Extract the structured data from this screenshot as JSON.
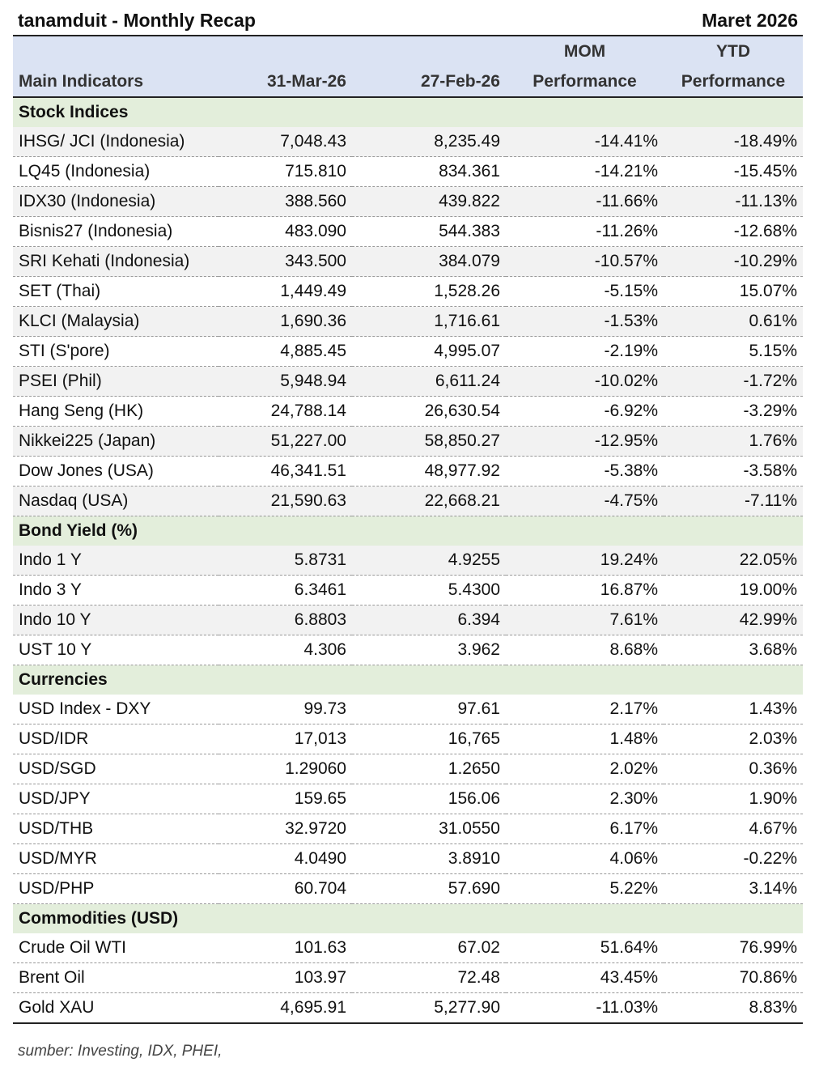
{
  "header": {
    "title": "tanamduit - Monthly Recap",
    "period": "Maret 2026"
  },
  "table": {
    "columns": [
      [
        "Main Indicators"
      ],
      [
        "31-Mar-26"
      ],
      [
        "27-Feb-26"
      ],
      [
        "MOM",
        "Performance"
      ],
      [
        "YTD",
        "Performance"
      ]
    ],
    "sections": [
      {
        "title": "Stock Indices",
        "rows": [
          [
            "IHSG/ JCI (Indonesia)",
            "7,048.43",
            "8,235.49",
            "-14.41%",
            "-18.49%"
          ],
          [
            "LQ45 (Indonesia)",
            "715.810",
            "834.361",
            "-14.21%",
            "-15.45%"
          ],
          [
            "IDX30 (Indonesia)",
            "388.560",
            "439.822",
            "-11.66%",
            "-11.13%"
          ],
          [
            "Bisnis27 (Indonesia)",
            "483.090",
            "544.383",
            "-11.26%",
            "-12.68%"
          ],
          [
            "SRI Kehati (Indonesia)",
            "343.500",
            "384.079",
            "-10.57%",
            "-10.29%"
          ],
          [
            "SET (Thai)",
            "1,449.49",
            "1,528.26",
            "-5.15%",
            "15.07%"
          ],
          [
            "KLCI (Malaysia)",
            "1,690.36",
            "1,716.61",
            "-1.53%",
            "0.61%"
          ],
          [
            "STI (S'pore)",
            "4,885.45",
            "4,995.07",
            "-2.19%",
            "5.15%"
          ],
          [
            "PSEI (Phil)",
            "5,948.94",
            "6,611.24",
            "-10.02%",
            "-1.72%"
          ],
          [
            "Hang Seng (HK)",
            "24,788.14",
            "26,630.54",
            "-6.92%",
            "-3.29%"
          ],
          [
            "Nikkei225 (Japan)",
            "51,227.00",
            "58,850.27",
            "-12.95%",
            "1.76%"
          ],
          [
            "Dow Jones (USA)",
            "46,341.51",
            "48,977.92",
            "-5.38%",
            "-3.58%"
          ],
          [
            "Nasdaq (USA)",
            "21,590.63",
            "22,668.21",
            "-4.75%",
            "-7.11%"
          ]
        ]
      },
      {
        "title": "Bond Yield (%)",
        "rows": [
          [
            "Indo 1 Y",
            "5.8731",
            "4.9255",
            "19.24%",
            "22.05%"
          ],
          [
            "Indo 3 Y",
            "6.3461",
            "5.4300",
            "16.87%",
            "19.00%"
          ],
          [
            "Indo 10 Y",
            "6.8803",
            "6.394",
            "7.61%",
            "42.99%"
          ],
          [
            "UST 10 Y",
            "4.306",
            "3.962",
            "8.68%",
            "3.68%"
          ]
        ]
      },
      {
        "title": "Currencies",
        "rows": [
          [
            "USD Index - DXY",
            "99.73",
            "97.61",
            "2.17%",
            "1.43%"
          ],
          [
            "USD/IDR",
            "17,013",
            "16,765",
            "1.48%",
            "2.03%"
          ],
          [
            "USD/SGD",
            "1.29060",
            "1.2650",
            "2.02%",
            "0.36%"
          ],
          [
            "USD/JPY",
            "159.65",
            "156.06",
            "2.30%",
            "1.90%"
          ],
          [
            "USD/THB",
            "32.9720",
            "31.0550",
            "6.17%",
            "4.67%"
          ],
          [
            "USD/MYR",
            "4.0490",
            "3.8910",
            "4.06%",
            "-0.22%"
          ],
          [
            "USD/PHP",
            "60.704",
            "57.690",
            "5.22%",
            "3.14%"
          ]
        ]
      },
      {
        "title": "Commodities (USD)",
        "rows": [
          [
            "Crude Oil WTI",
            "101.63",
            "67.02",
            "51.64%",
            "76.99%"
          ],
          [
            "Brent Oil",
            "103.97",
            "72.48",
            "43.45%",
            "70.86%"
          ],
          [
            "Gold XAU",
            "4,695.91",
            "5,277.90",
            "-11.03%",
            "8.83%"
          ]
        ]
      }
    ]
  },
  "footer": {
    "source": "sumber: Investing, IDX, PHEI,"
  }
}
